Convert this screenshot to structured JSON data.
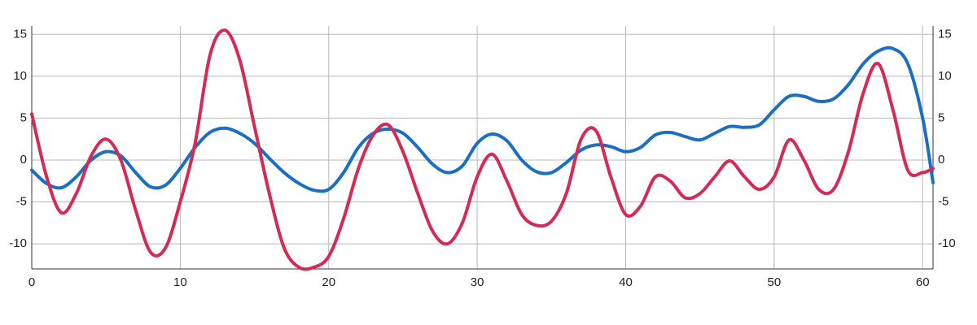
{
  "chart_data": {
    "type": "line",
    "x": [
      0,
      1,
      2,
      3,
      4,
      5,
      6,
      7,
      8,
      9,
      10,
      11,
      12,
      13,
      14,
      15,
      16,
      17,
      18,
      19,
      20,
      21,
      22,
      23,
      24,
      25,
      26,
      27,
      28,
      29,
      30,
      31,
      32,
      33,
      34,
      35,
      36,
      37,
      38,
      39,
      40,
      41,
      42,
      43,
      44,
      45,
      46,
      47,
      48,
      49,
      50,
      51,
      52,
      53,
      54,
      55,
      56,
      57,
      58,
      59,
      60,
      60.7
    ],
    "series": [
      {
        "color": "#1a6fc4",
        "values": [
          -1.2,
          -2.8,
          -3.3,
          -2,
          0,
          1,
          0.5,
          -1.5,
          -3.2,
          -3,
          -1,
          1.5,
          3.3,
          3.8,
          3.2,
          2,
          0.2,
          -1.5,
          -2.8,
          -3.6,
          -3.5,
          -1.5,
          1.5,
          3.2,
          3.7,
          3.2,
          1.5,
          -0.5,
          -1.5,
          -0.7,
          2,
          3.1,
          2.3,
          0,
          -1.4,
          -1.5,
          -0.3,
          1.2,
          1.8,
          1.6,
          1,
          1.5,
          3,
          3.3,
          2.8,
          2.4,
          3.2,
          4,
          3.9,
          4.2,
          6,
          7.6,
          7.6,
          7,
          7.3,
          9,
          11.5,
          13,
          13.3,
          11.5,
          5,
          -2.7
        ]
      },
      {
        "color": "#d42a55",
        "values": [
          5.5,
          -2,
          -6.3,
          -4,
          0.5,
          2.5,
          0,
          -6,
          -11,
          -10.5,
          -5,
          2,
          12.5,
          15.5,
          12,
          4,
          -4,
          -10.5,
          -12.8,
          -12.8,
          -11.5,
          -7,
          -1,
          3,
          4.2,
          1,
          -4,
          -8.5,
          -10,
          -7.5,
          -2,
          0.7,
          -2.5,
          -6.5,
          -7.8,
          -7.3,
          -4,
          2.5,
          3.5,
          -2,
          -6.5,
          -5.5,
          -2,
          -2.5,
          -4.5,
          -4,
          -2,
          -0.1,
          -2,
          -3.5,
          -2,
          2.4,
          0,
          -3.5,
          -3.5,
          1,
          8,
          11.5,
          6,
          -1.2,
          -1.5,
          -1
        ]
      }
    ],
    "xlim": [
      0,
      60.7
    ],
    "ylim": [
      -13,
      16
    ],
    "xticks": [
      0,
      10,
      20,
      30,
      40,
      50,
      60
    ],
    "yticks": [
      -10,
      -5,
      0,
      5,
      10,
      15
    ],
    "grid": true
  }
}
